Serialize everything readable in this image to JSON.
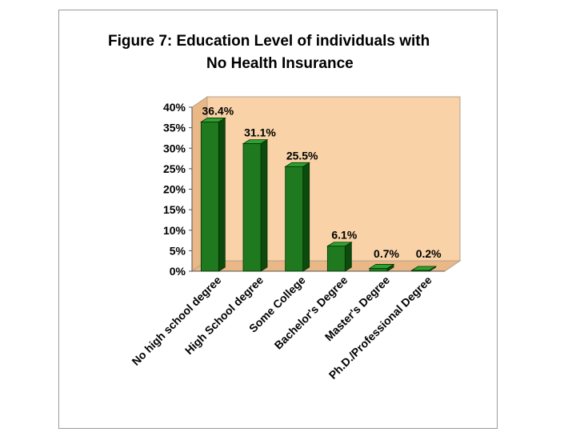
{
  "chart_data": {
    "type": "bar",
    "title": [
      "Figure 7: Education Level of individuals with",
      "No Health Insurance"
    ],
    "categories": [
      "No high school degree",
      "High School degree",
      "Some College",
      "Bachelor's Degree",
      "Master's Degree",
      "Ph.D./Professional Degree"
    ],
    "values": [
      36.4,
      31.1,
      25.5,
      6.1,
      0.7,
      0.2
    ],
    "data_labels": [
      "36.4%",
      "31.1%",
      "25.5%",
      "6.1%",
      "0.7%",
      "0.2%"
    ],
    "y_ticks": [
      "0%",
      "5%",
      "10%",
      "15%",
      "20%",
      "25%",
      "30%",
      "35%",
      "40%"
    ],
    "ylim": [
      0,
      40
    ],
    "xlabel": "",
    "ylabel": "",
    "grid": false,
    "legend": "none",
    "colors": {
      "bar_front": "#1f7a1f",
      "bar_side": "#0d4a0d",
      "bar_top": "#2fa12f",
      "plot_bg": "#f9d3a7",
      "plot_floor": "#e9b886",
      "frame_border": "#9a9a9a"
    }
  }
}
